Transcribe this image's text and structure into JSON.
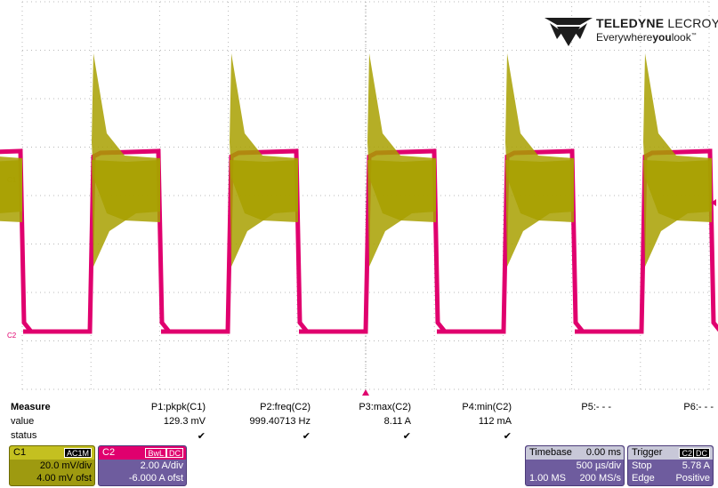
{
  "logo": {
    "brand_bold": "TELEDYNE",
    "brand_light": " LECROY",
    "tagline_pre": "Everywhere",
    "tagline_bold": "you",
    "tagline_post": "look",
    "tm": "™"
  },
  "channels": {
    "c1": {
      "label": "C1",
      "color": "#a8a000"
    },
    "c2": {
      "label": "C2",
      "color": "#e0006e"
    }
  },
  "measure": {
    "header_label": "Measure",
    "value_label": "value",
    "status_label": "status",
    "params": [
      {
        "name": "P1:pkpk(C1)",
        "value": "129.3 mV",
        "status": "✔"
      },
      {
        "name": "P2:freq(C2)",
        "value": "999.40713 Hz",
        "status": "✔"
      },
      {
        "name": "P3:max(C2)",
        "value": "8.11 A",
        "status": "✔"
      },
      {
        "name": "P4:min(C2)",
        "value": "112 mA",
        "status": "✔"
      },
      {
        "name": "P5:- - -",
        "value": "",
        "status": ""
      },
      {
        "name": "P6:- - -",
        "value": "",
        "status": ""
      }
    ]
  },
  "c1_box": {
    "name": "C1",
    "tag": "AC1M",
    "vdiv": "20.0 mV/div",
    "offset": "4.00 mV ofst"
  },
  "c2_box": {
    "name": "C2",
    "tag1": "BwL",
    "tag2": "DC",
    "vdiv": "2.00 A/div",
    "offset": "-6.000 A ofst"
  },
  "timebase": {
    "name": "Timebase",
    "delay": "0.00 ms",
    "tdiv": "500 µs/div",
    "samples": "1.00 MS",
    "rate": "200 MS/s"
  },
  "trigger": {
    "name": "Trigger",
    "tag1": "C2",
    "tag2": "DC",
    "mode": "Stop",
    "level": "5.78 A",
    "type": "Edge",
    "slope": "Positive"
  }
}
